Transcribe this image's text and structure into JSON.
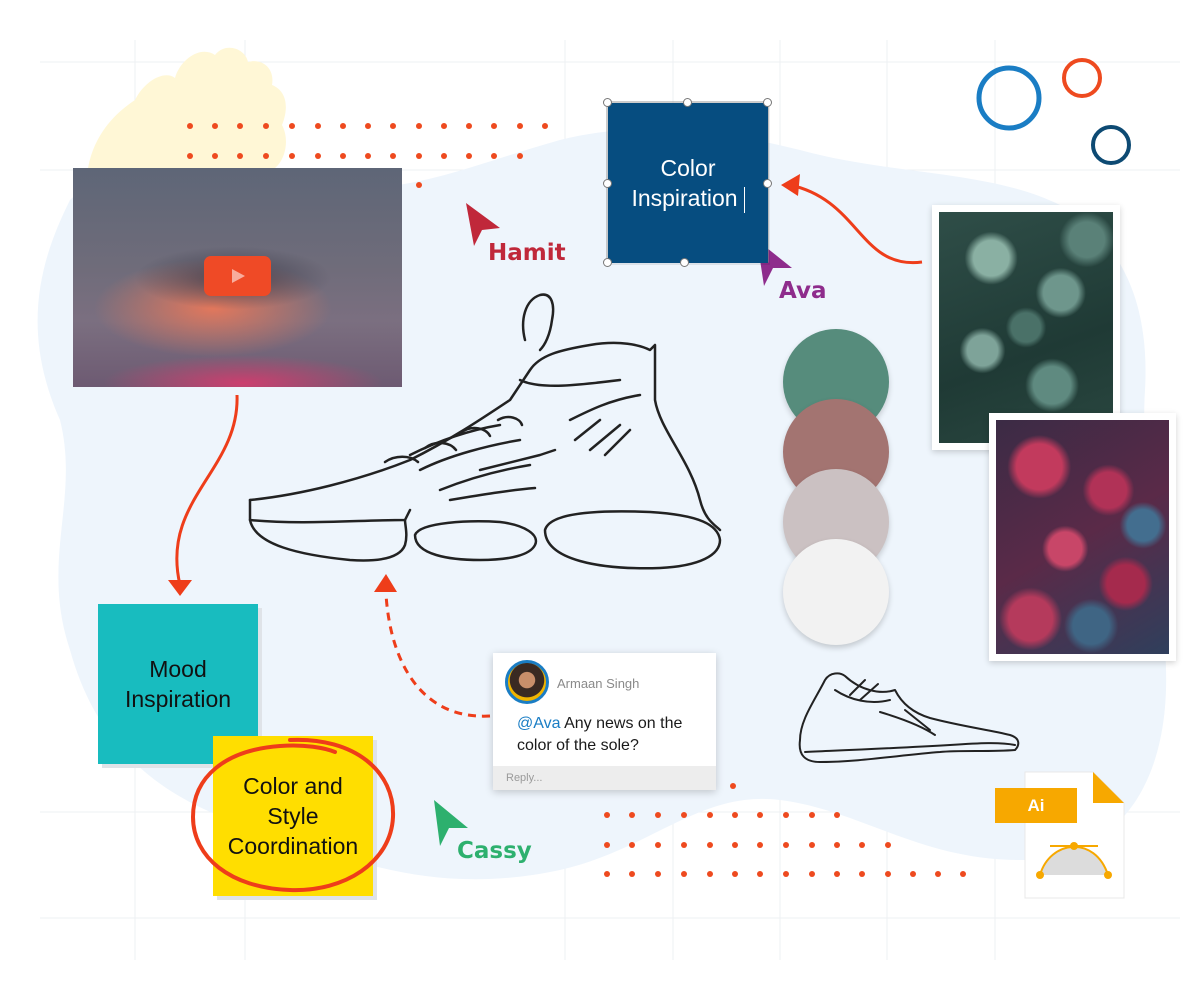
{
  "video": {
    "play_icon": "play-icon"
  },
  "sticky_notes": {
    "color_inspiration": {
      "line1": "Color",
      "line2": "Inspiration",
      "bg": "#064d80"
    },
    "mood_inspiration": {
      "line1": "Mood",
      "line2": "Inspiration",
      "bg": "#18bcbf"
    },
    "color_style": {
      "line1": "Color and",
      "line2": "Style",
      "line3": "Coordination",
      "bg": "#ffde00"
    }
  },
  "cursors": [
    {
      "name": "Hamit",
      "color": "#c0283a"
    },
    {
      "name": "Ava",
      "color": "#8e2c8c"
    },
    {
      "name": "Cassy",
      "color": "#2db06e"
    }
  ],
  "swatches": [
    "#568c7c",
    "#a37471",
    "#cbc1c2",
    "#f2f2f2"
  ],
  "comment": {
    "author": "Armaan Singh",
    "mention": "@Ava",
    "text": " Any news on the color of the sole?",
    "reply_placeholder": "Reply..."
  },
  "file": {
    "badge": "Ai",
    "icon": "illustrator-file-icon"
  },
  "colors": {
    "accent_orange": "#ee4a1f",
    "canvas_blob": "#eef5fc"
  }
}
